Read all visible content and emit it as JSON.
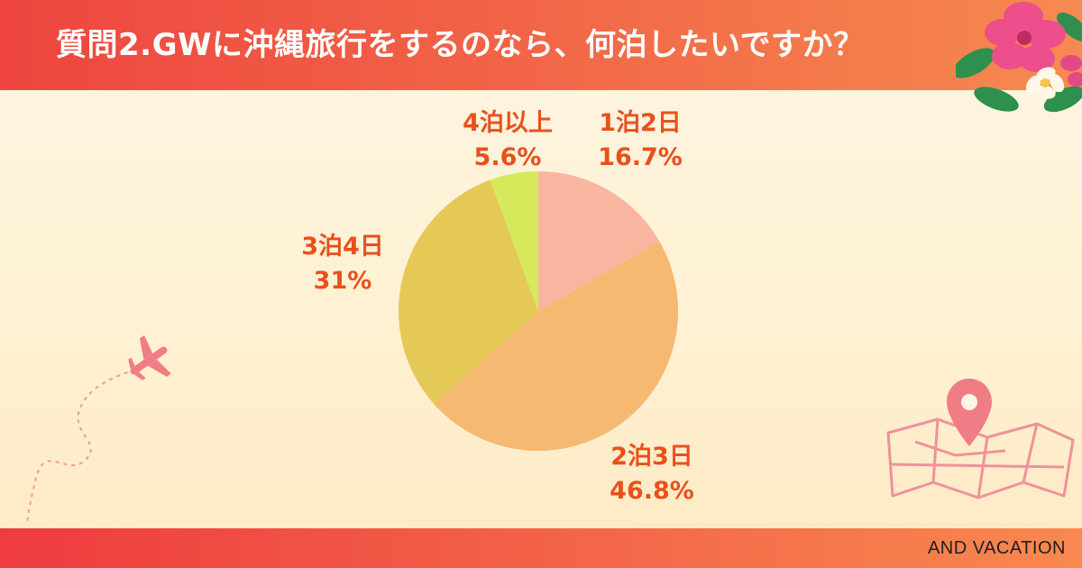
{
  "header": {
    "title": "質問2.GWに沖縄旅行をするのなら、何泊したいですか？"
  },
  "footer": {
    "brand": "AND VACATION"
  },
  "colors": {
    "header": "#ef4a3f",
    "footer": "#f05a44",
    "label": "#e8511b",
    "background": "#fdf1da"
  },
  "decor": {
    "icons": [
      "hibiscus-flower-icon",
      "airplane-icon",
      "map-pin-icon"
    ]
  },
  "chart_data": {
    "type": "pie",
    "start": "12 o'clock",
    "direction": "clockwise",
    "slices": [
      {
        "label": "1泊2日",
        "value": 16.7,
        "value_label": "16.7%",
        "color": "#f8b6a0"
      },
      {
        "label": "2泊3日",
        "value": 46.8,
        "value_label": "46.8%",
        "color": "#f5b972"
      },
      {
        "label": "3泊4日",
        "value": 31,
        "value_label": "31%",
        "color": "#e5c957"
      },
      {
        "label": "4泊以上",
        "value": 5.6,
        "value_label": "5.6%",
        "color": "#d6e95a"
      }
    ]
  }
}
